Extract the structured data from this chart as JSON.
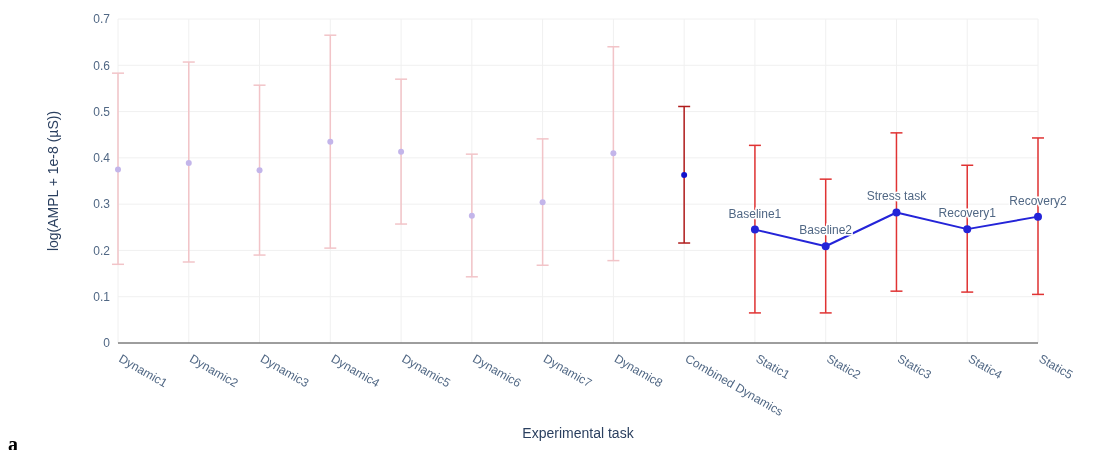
{
  "chart_data": {
    "type": "scatter",
    "xlabel": "Experimental task",
    "ylabel": "log(AMPL + 1e-8 (µS))",
    "categories": [
      "Dynamic1",
      "Dynamic2",
      "Dynamic3",
      "Dynamic4",
      "Dynamic5",
      "Dynamic6",
      "Dynamic7",
      "Dynamic8",
      "Combined Dynamics",
      "Static1",
      "Static2",
      "Static3",
      "Static4",
      "Static5"
    ],
    "series": [
      {
        "color": "#c3b5ea",
        "values": [
          0.375,
          0.389,
          0.373,
          0.435,
          0.413,
          0.275,
          0.304,
          0.41,
          null,
          null,
          null,
          null,
          null,
          null
        ],
        "errors": [
          [
            0.17,
            0.583
          ],
          [
            0.175,
            0.607
          ],
          [
            0.19,
            0.557
          ],
          [
            0.205,
            0.665
          ],
          [
            0.257,
            0.57
          ],
          [
            0.143,
            0.408
          ],
          [
            0.168,
            0.441
          ],
          [
            0.178,
            0.64
          ],
          null,
          null,
          null,
          null,
          null,
          null
        ]
      },
      {
        "color": "#1212cc",
        "values": [
          null,
          null,
          null,
          null,
          null,
          null,
          null,
          null,
          0.363,
          null,
          null,
          null,
          null,
          null
        ],
        "errors": [
          null,
          null,
          null,
          null,
          null,
          null,
          null,
          null,
          [
            0.216,
            0.511
          ],
          null,
          null,
          null,
          null,
          null
        ]
      },
      {
        "type": "line",
        "color": "#2424d8",
        "values": [
          null,
          null,
          null,
          null,
          null,
          null,
          null,
          null,
          null,
          0.245,
          0.209,
          0.282,
          0.246,
          0.273
        ],
        "errors": [
          null,
          null,
          null,
          null,
          null,
          null,
          null,
          null,
          null,
          [
            0.065,
            0.427
          ],
          [
            0.065,
            0.354
          ],
          [
            0.112,
            0.454
          ],
          [
            0.11,
            0.384
          ],
          [
            0.105,
            0.443
          ]
        ]
      }
    ],
    "annotations": [
      {
        "text": "Baseline1",
        "x": "Static1",
        "y": 0.245
      },
      {
        "text": "Baseline2",
        "x": "Static2",
        "y": 0.209
      },
      {
        "text": "Stress task",
        "x": "Static3",
        "y": 0.282
      },
      {
        "text": "Recovery1",
        "x": "Static4",
        "y": 0.246
      },
      {
        "text": "Recovery2",
        "x": "Static5",
        "y": 0.273
      },
      "a"
    ],
    "ylim": [
      0,
      0.7
    ],
    "yticks": [
      0,
      0.1,
      0.2,
      0.3,
      0.4,
      0.5,
      0.6,
      0.7
    ],
    "grid": true,
    "marker": "circle",
    "line_style": "solid",
    "legend": false
  }
}
